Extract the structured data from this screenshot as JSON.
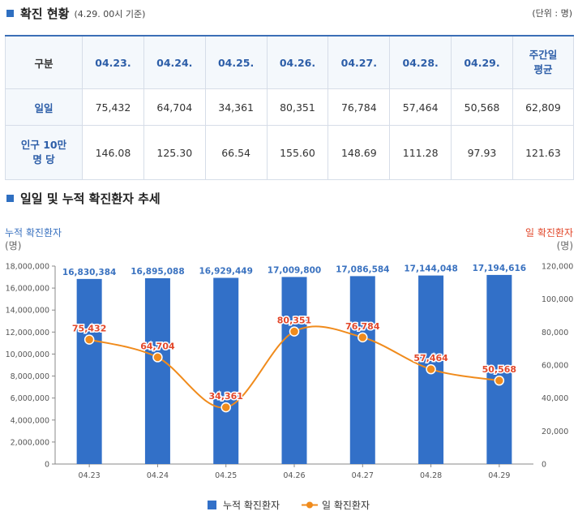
{
  "section1": {
    "title": "확진 현황",
    "subtitle": "(4.29. 00시 기준)",
    "unit": "(단위 : 명)"
  },
  "table": {
    "headers": [
      "구분",
      "04.23.",
      "04.24.",
      "04.25.",
      "04.26.",
      "04.27.",
      "04.28.",
      "04.29.",
      "주간일\n평균"
    ],
    "rows": [
      {
        "label": "일일",
        "values": [
          "75,432",
          "64,704",
          "34,361",
          "80,351",
          "76,784",
          "57,464",
          "50,568",
          "62,809"
        ]
      },
      {
        "label": "인구 10만\n명 당",
        "values": [
          "146.08",
          "125.30",
          "66.54",
          "155.60",
          "148.69",
          "111.28",
          "97.93",
          "121.63"
        ]
      }
    ]
  },
  "section2": {
    "title": "일일 및 누적 확진환자 추세"
  },
  "colors": {
    "bar": "#3270c8",
    "line": "#f08b1c",
    "bar_label": "#3a72c0",
    "line_label": "#e2482b",
    "left_axis_title": "#3a72c0",
    "right_axis_title": "#e2482b"
  },
  "chart_data": {
    "type": "bar",
    "categories": [
      "04.23",
      "04.24",
      "04.25",
      "04.26",
      "04.27",
      "04.28",
      "04.29"
    ],
    "series": [
      {
        "name": "누적 확진환자",
        "type": "bar",
        "axis": "left",
        "values": [
          16830384,
          16895088,
          16929449,
          17009800,
          17086584,
          17144048,
          17194616
        ],
        "labels": [
          "16,830,384",
          "16,895,088",
          "16,929,449",
          "17,009,800",
          "17,086,584",
          "17,144,048",
          "17,194,616"
        ]
      },
      {
        "name": "일 확진환자",
        "type": "line",
        "axis": "right",
        "values": [
          75432,
          64704,
          34361,
          80351,
          76784,
          57464,
          50568
        ],
        "labels": [
          "75,432",
          "64,704",
          "34,361",
          "80,351",
          "76,784",
          "57,464",
          "50,568"
        ]
      }
    ],
    "y_left": {
      "title": "누적 확진환자",
      "unit": "(명)",
      "range": [
        0,
        18000000
      ],
      "ticks": [
        "0",
        "2,000,000",
        "4,000,000",
        "6,000,000",
        "8,000,000",
        "10,000,000",
        "12,000,000",
        "14,000,000",
        "16,000,000",
        "18,000,000"
      ]
    },
    "y_right": {
      "title": "일 확진환자",
      "unit": "(명)",
      "range": [
        0,
        120000
      ],
      "ticks": [
        "0",
        "20,000",
        "40,000",
        "60,000",
        "80,000",
        "100,000",
        "120,000"
      ]
    },
    "legend": [
      "누적 확진환자",
      "일 확진환자"
    ],
    "legend_position": "bottom",
    "grid": false
  }
}
